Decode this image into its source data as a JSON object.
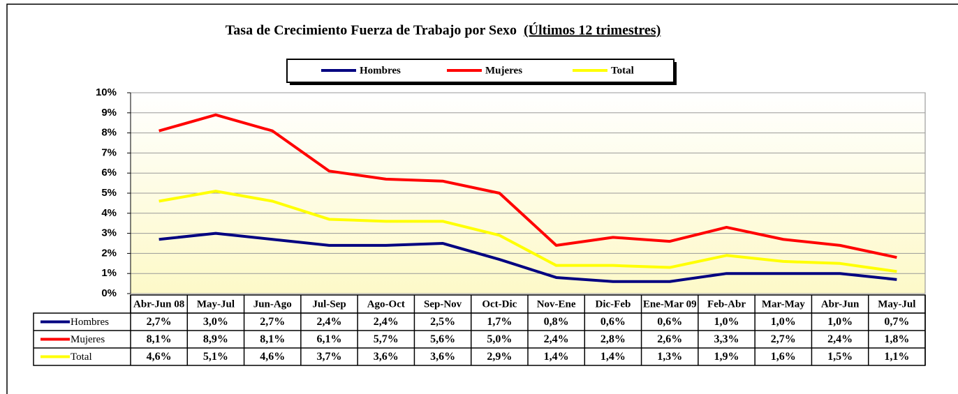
{
  "chart_data": {
    "type": "line",
    "title": "Tasa de Crecimiento  Fuerza de Trabajo por Sexo",
    "subtitle": "(Últimos 12 trimestres)",
    "categories": [
      "Abr-Jun 08",
      "May-Jul",
      "Jun-Ago",
      "Jul-Sep",
      "Ago-Oct",
      "Sep-Nov",
      "Oct-Dic",
      "Nov-Ene",
      "Dic-Feb",
      "Ene-Mar 09",
      "Feb-Abr",
      "Mar-May",
      "Abr-Jun",
      "May-Jul"
    ],
    "series": [
      {
        "name": "Hombres",
        "color": "#000080",
        "values": [
          2.7,
          3.0,
          2.7,
          2.4,
          2.4,
          2.5,
          1.7,
          0.8,
          0.6,
          0.6,
          1.0,
          1.0,
          1.0,
          0.7
        ],
        "value_labels": [
          "2,7%",
          "3,0%",
          "2,7%",
          "2,4%",
          "2,4%",
          "2,5%",
          "1,7%",
          "0,8%",
          "0,6%",
          "0,6%",
          "1,0%",
          "1,0%",
          "1,0%",
          "0,7%"
        ]
      },
      {
        "name": "Mujeres",
        "color": "#ff0000",
        "values": [
          8.1,
          8.9,
          8.1,
          6.1,
          5.7,
          5.6,
          5.0,
          2.4,
          2.8,
          2.6,
          3.3,
          2.7,
          2.4,
          1.8
        ],
        "value_labels": [
          "8,1%",
          "8,9%",
          "8,1%",
          "6,1%",
          "5,7%",
          "5,6%",
          "5,0%",
          "2,4%",
          "2,8%",
          "2,6%",
          "3,3%",
          "2,7%",
          "2,4%",
          "1,8%"
        ]
      },
      {
        "name": "Total",
        "color": "#ffff00",
        "values": [
          4.6,
          5.1,
          4.6,
          3.7,
          3.6,
          3.6,
          2.9,
          1.4,
          1.4,
          1.3,
          1.9,
          1.6,
          1.5,
          1.1
        ],
        "value_labels": [
          "4,6%",
          "5,1%",
          "4,6%",
          "3,7%",
          "3,6%",
          "3,6%",
          "2,9%",
          "1,4%",
          "1,4%",
          "1,3%",
          "1,9%",
          "1,6%",
          "1,5%",
          "1,1%"
        ]
      }
    ],
    "ylim": [
      0,
      10
    ],
    "yticks": [
      {
        "value": 0,
        "label": "0%"
      },
      {
        "value": 1,
        "label": "1%"
      },
      {
        "value": 2,
        "label": "2%"
      },
      {
        "value": 3,
        "label": "3%"
      },
      {
        "value": 4,
        "label": "4%"
      },
      {
        "value": 5,
        "label": "5%"
      },
      {
        "value": 6,
        "label": "6%"
      },
      {
        "value": 7,
        "label": "7%"
      },
      {
        "value": 8,
        "label": "8%"
      },
      {
        "value": 9,
        "label": "9%"
      },
      {
        "value": 10,
        "label": "10%"
      }
    ],
    "grid": true,
    "legend": "top"
  }
}
